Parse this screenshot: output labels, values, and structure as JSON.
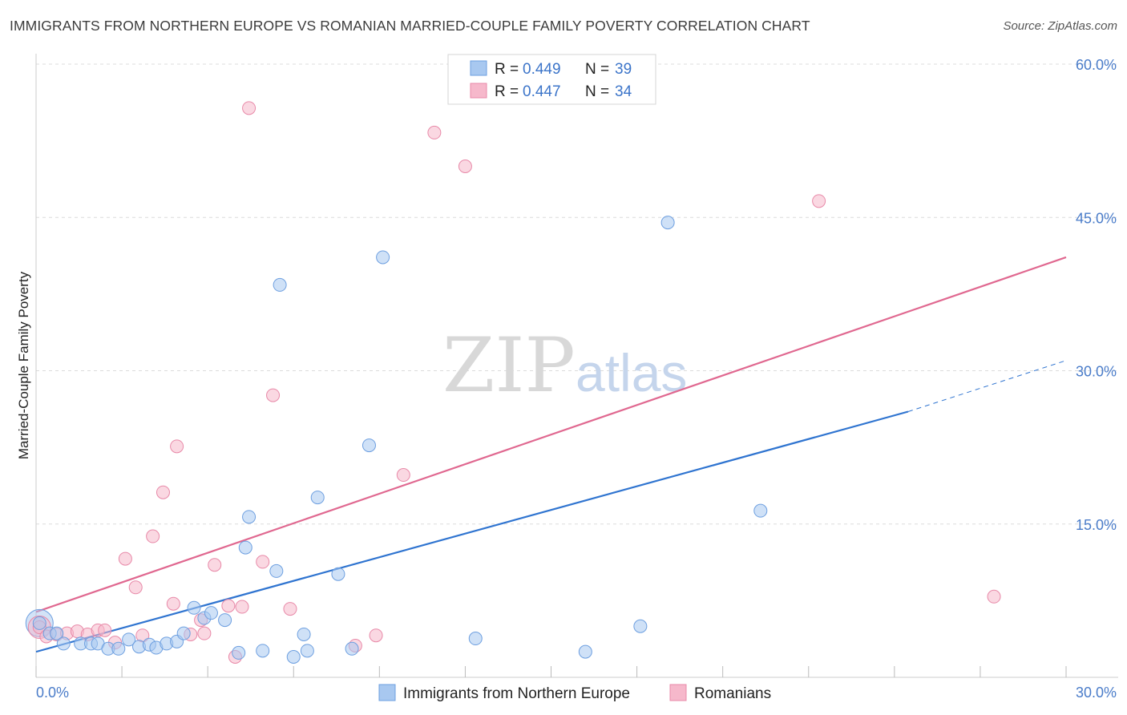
{
  "title": "IMMIGRANTS FROM NORTHERN EUROPE VS ROMANIAN MARRIED-COUPLE FAMILY POVERTY CORRELATION CHART",
  "source": "Source: ZipAtlas.com",
  "watermark": {
    "zip": "ZIP",
    "atlas": "atlas"
  },
  "legend": {
    "r_label": "R =",
    "n_label": "N =",
    "blue": {
      "r": "0.449",
      "n": "39"
    },
    "pink": {
      "r": "0.447",
      "n": "34"
    }
  },
  "colors": {
    "blue_fill": "#a8c8f0",
    "blue_stroke": "#6d9fe0",
    "blue_line": "#2f74d0",
    "pink_fill": "#f6b8cb",
    "pink_stroke": "#e889a8",
    "pink_line": "#e06890",
    "grid": "#dcdcdc",
    "tick_text": "#4a7cc9"
  },
  "chart_data": {
    "type": "scatter",
    "title": "IMMIGRANTS FROM NORTHERN EUROPE VS ROMANIAN MARRIED-COUPLE FAMILY POVERTY CORRELATION CHART",
    "xlabel": "",
    "ylabel": "Married-Couple Family Poverty",
    "xlim": [
      0,
      30
    ],
    "ylim": [
      0,
      62
    ],
    "x_tick_labels": [
      "0.0%",
      "30.0%"
    ],
    "y_ticks": [
      15,
      30,
      45,
      60
    ],
    "y_tick_labels": [
      "15.0%",
      "30.0%",
      "45.0%",
      "60.0%"
    ],
    "series": [
      {
        "name": "Immigrants from Northern Europe",
        "color": "#a8c8f0",
        "points": [
          [
            0.1,
            5.3
          ],
          [
            0.4,
            4.3
          ],
          [
            0.6,
            4.3
          ],
          [
            0.8,
            3.3
          ],
          [
            1.3,
            3.3
          ],
          [
            1.6,
            3.3
          ],
          [
            1.8,
            3.3
          ],
          [
            2.1,
            2.8
          ],
          [
            2.4,
            2.8
          ],
          [
            2.7,
            3.7
          ],
          [
            3.0,
            3.0
          ],
          [
            3.3,
            3.2
          ],
          [
            3.5,
            2.9
          ],
          [
            3.8,
            3.3
          ],
          [
            4.1,
            3.5
          ],
          [
            4.3,
            4.3
          ],
          [
            4.6,
            6.8
          ],
          [
            4.9,
            5.8
          ],
          [
            5.1,
            6.3
          ],
          [
            5.5,
            5.6
          ],
          [
            5.9,
            2.4
          ],
          [
            6.1,
            12.7
          ],
          [
            6.2,
            15.7
          ],
          [
            6.6,
            2.6
          ],
          [
            7.0,
            10.4
          ],
          [
            7.1,
            38.4
          ],
          [
            7.5,
            2.0
          ],
          [
            7.8,
            4.2
          ],
          [
            7.9,
            2.6
          ],
          [
            8.2,
            17.6
          ],
          [
            8.8,
            10.1
          ],
          [
            9.2,
            2.8
          ],
          [
            9.7,
            22.7
          ],
          [
            10.1,
            41.1
          ],
          [
            12.8,
            3.8
          ],
          [
            16.0,
            2.5
          ],
          [
            17.6,
            5.0
          ],
          [
            18.4,
            44.5
          ],
          [
            21.1,
            16.3
          ]
        ],
        "trend": {
          "x": [
            0,
            25.4
          ],
          "y": [
            2.5,
            26.0
          ]
        },
        "trend_extension": {
          "x": [
            25.4,
            30
          ],
          "y": [
            26.0,
            31.0
          ]
        }
      },
      {
        "name": "Romanians",
        "color": "#f6b8cb",
        "points": [
          [
            0.1,
            4.9
          ],
          [
            0.3,
            4.0
          ],
          [
            0.6,
            4.2
          ],
          [
            0.9,
            4.3
          ],
          [
            1.2,
            4.5
          ],
          [
            1.5,
            4.2
          ],
          [
            1.8,
            4.6
          ],
          [
            2.0,
            4.6
          ],
          [
            2.3,
            3.4
          ],
          [
            2.6,
            11.6
          ],
          [
            2.9,
            8.8
          ],
          [
            3.1,
            4.1
          ],
          [
            3.4,
            13.8
          ],
          [
            3.7,
            18.1
          ],
          [
            4.0,
            7.2
          ],
          [
            4.1,
            22.6
          ],
          [
            4.5,
            4.2
          ],
          [
            4.8,
            5.6
          ],
          [
            4.9,
            4.3
          ],
          [
            5.2,
            11.0
          ],
          [
            5.6,
            7.0
          ],
          [
            5.8,
            2.0
          ],
          [
            6.0,
            6.9
          ],
          [
            6.2,
            55.7
          ],
          [
            6.6,
            11.3
          ],
          [
            6.9,
            27.6
          ],
          [
            7.4,
            6.7
          ],
          [
            9.3,
            3.1
          ],
          [
            9.9,
            4.1
          ],
          [
            10.7,
            19.8
          ],
          [
            11.6,
            53.3
          ],
          [
            12.5,
            50.0
          ],
          [
            22.8,
            46.6
          ],
          [
            27.9,
            7.9
          ]
        ],
        "trend": {
          "x": [
            0,
            30
          ],
          "y": [
            6.4,
            41.1
          ]
        }
      }
    ]
  },
  "bottom_legend": {
    "blue_label": "Immigrants from Northern Europe",
    "pink_label": "Romanians"
  }
}
